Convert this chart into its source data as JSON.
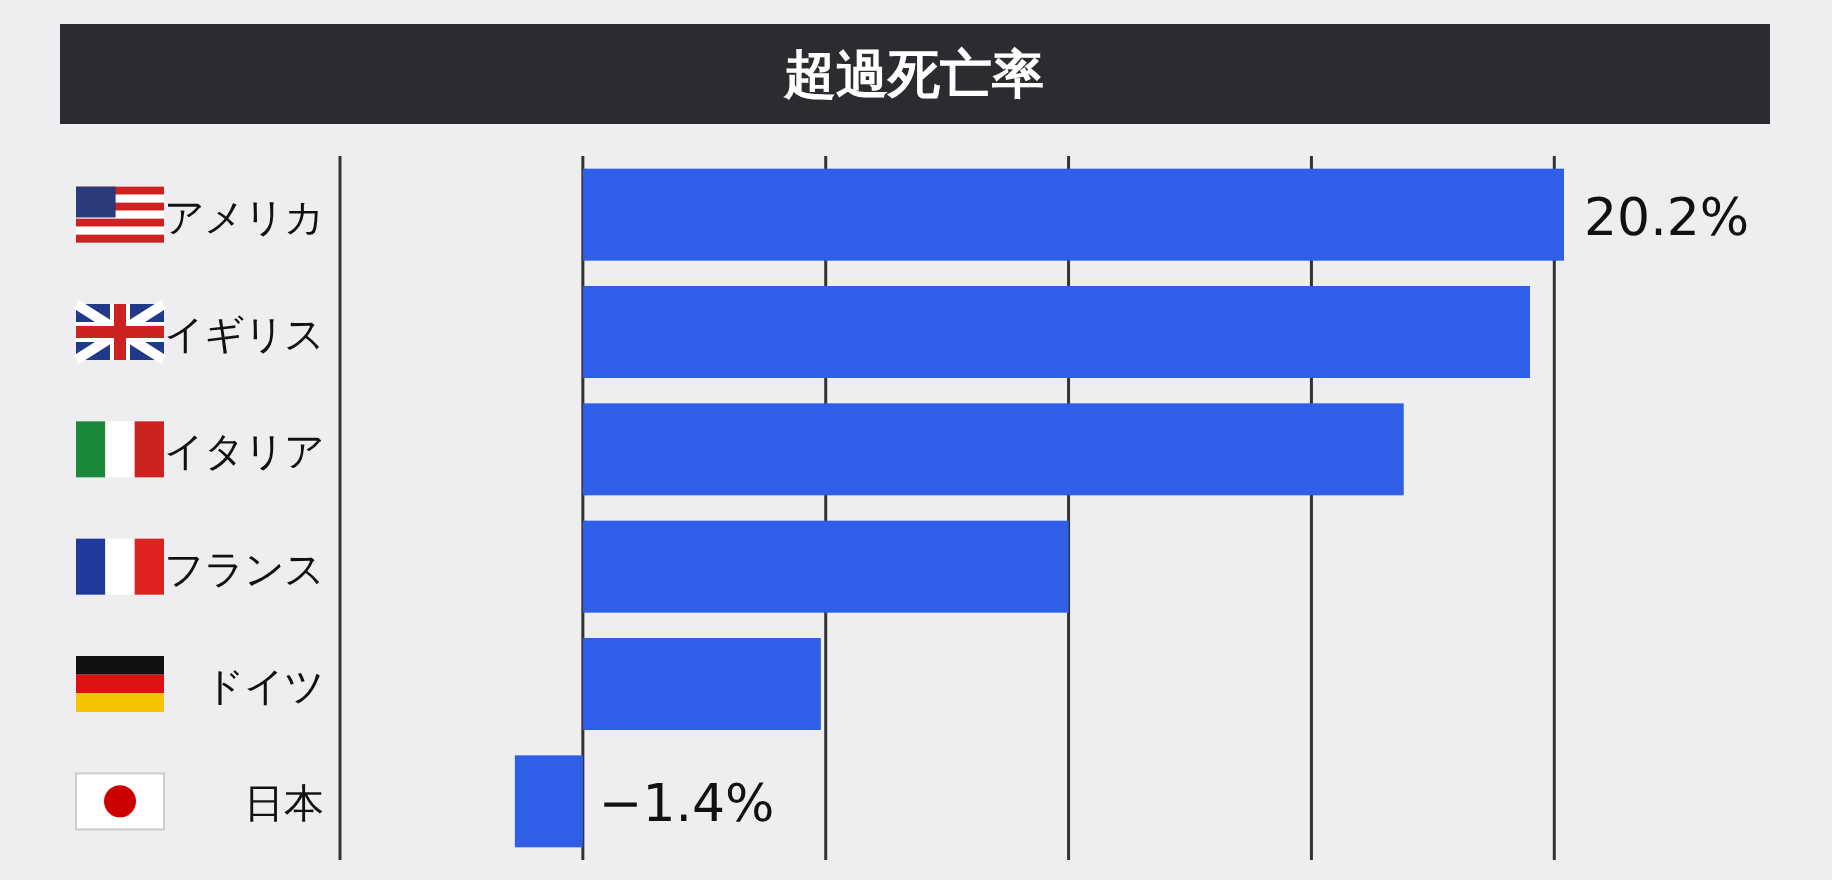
{
  "chart_data": {
    "type": "bar",
    "orientation": "horizontal",
    "title": "超過死亡率",
    "categories": [
      "アメリカ",
      "イギリス",
      "イタリア",
      "フランス",
      "ドイツ",
      "日本"
    ],
    "values": [
      20.2,
      19.5,
      16.9,
      10.0,
      4.9,
      -1.4
    ],
    "value_labels": [
      "20.2%",
      null,
      null,
      null,
      null,
      "−1.4%"
    ],
    "color": "#2f5fe6",
    "xlim": [
      -5,
      20.2
    ],
    "xticks": [
      {
        "value": -5,
        "label": null
      },
      {
        "value": 0,
        "label": null
      },
      {
        "value": 5,
        "label": null
      },
      {
        "value": 10,
        "label": null
      },
      {
        "value": 15,
        "label": null
      },
      {
        "value": 20,
        "label": null
      }
    ],
    "grid": "x"
  }
}
